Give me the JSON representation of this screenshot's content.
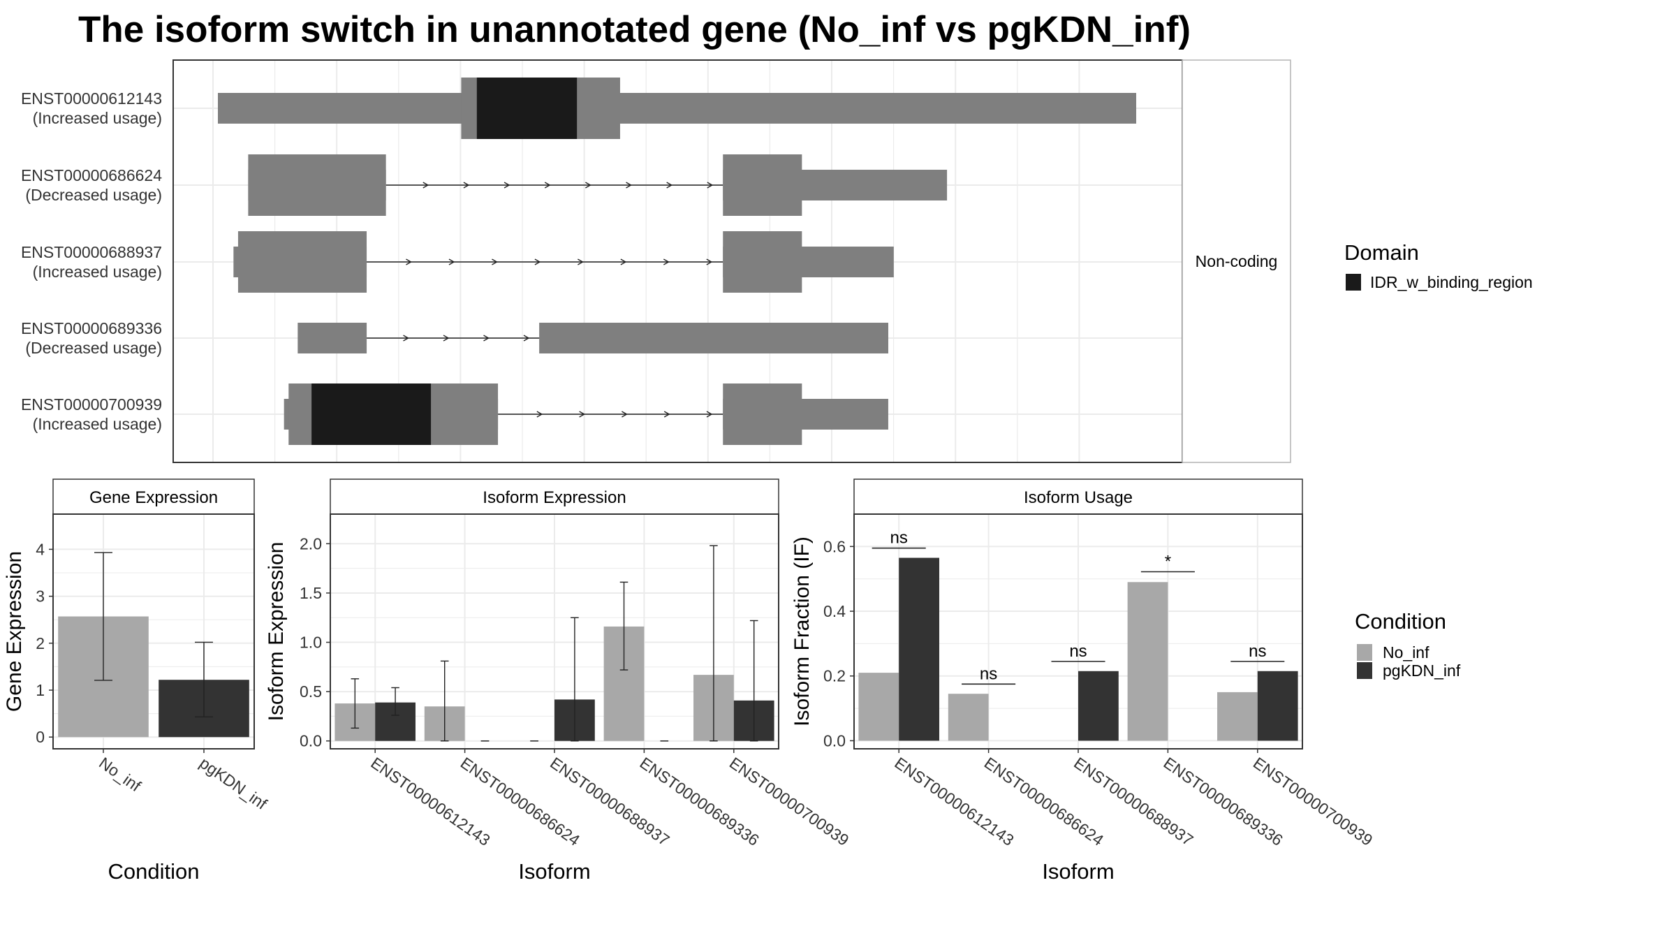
{
  "title": "The isoform switch in unannotated gene (No_inf vs pgKDN_inf)",
  "colors": {
    "no_inf": "#a8a8a8",
    "pgkdn_inf": "#333333",
    "transcript": "#7f7f7f",
    "domain": "#1a1a1a",
    "grid": "#ebebeb"
  },
  "chart_data": [
    {
      "panel": "transcript_structure",
      "type": "gene-structure",
      "strip_label": "Non-coding",
      "xlim": [
        0,
        100
      ],
      "transcripts": [
        {
          "id": "ENST00000612143",
          "label": "(Increased usage)",
          "exons": [
            [
              0,
              100
            ]
          ],
          "thick_exons": [
            [
              26.5,
              43.8
            ]
          ],
          "domains": [
            [
              28.2,
              39.1
            ]
          ]
        },
        {
          "id": "ENST00000686624",
          "label": "(Decreased usage)",
          "exons": [
            [
              3.3,
              18.3
            ],
            [
              55.0,
              79.4
            ]
          ],
          "thick_exons": [
            [
              3.3,
              18.3
            ],
            [
              55.0,
              63.6
            ]
          ],
          "domains": []
        },
        {
          "id": "ENST00000688937",
          "label": "(Increased usage)",
          "exons": [
            [
              1.7,
              16.2
            ],
            [
              55.0,
              73.6
            ]
          ],
          "thick_exons": [
            [
              2.2,
              16.2
            ],
            [
              55.0,
              63.6
            ]
          ],
          "domains": []
        },
        {
          "id": "ENST00000689336",
          "label": "(Decreased usage)",
          "exons": [
            [
              8.7,
              16.2
            ],
            [
              35.0,
              73.0
            ]
          ],
          "thick_exons": [],
          "domains": []
        },
        {
          "id": "ENST00000700939",
          "label": "(Increased usage)",
          "exons": [
            [
              7.2,
              30.5
            ],
            [
              55.0,
              73.0
            ]
          ],
          "thick_exons": [
            [
              7.7,
              30.5
            ],
            [
              55.0,
              63.6
            ]
          ],
          "domains": [
            [
              10.2,
              23.2
            ]
          ]
        }
      ],
      "legend": {
        "title": "Domain",
        "entries": [
          "IDR_w_binding_region"
        ]
      }
    },
    {
      "panel": "gene_expression",
      "type": "bar",
      "strip_label": "Gene Expression",
      "xlabel": "Condition",
      "ylabel": "Gene Expression",
      "ylim": [
        -0.25,
        4.75
      ],
      "yticks": [
        0,
        1,
        2,
        3,
        4
      ],
      "categories": [
        "No_inf",
        "pgKDN_inf"
      ],
      "values": [
        2.57,
        1.22
      ],
      "error_low": [
        1.21,
        0.43
      ],
      "error_high": [
        3.93,
        2.02
      ]
    },
    {
      "panel": "isoform_expression",
      "type": "bar",
      "strip_label": "Isoform Expression",
      "xlabel": "Isoform",
      "ylabel": "Isoform Expression",
      "ylim": [
        -0.08,
        2.3
      ],
      "yticks": [
        0.0,
        0.5,
        1.0,
        1.5,
        2.0
      ],
      "categories": [
        "ENST00000612143",
        "ENST00000686624",
        "ENST00000688937",
        "ENST00000689336",
        "ENST00000700939"
      ],
      "series": [
        {
          "name": "No_inf",
          "values": [
            0.38,
            0.35,
            0.0,
            1.16,
            0.67
          ],
          "error_low": [
            0.13,
            0.0,
            0.0,
            0.72,
            0.0
          ],
          "error_high": [
            0.63,
            0.81,
            0.0,
            1.61,
            1.98
          ]
        },
        {
          "name": "pgKDN_inf",
          "values": [
            0.39,
            0.0,
            0.42,
            0.0,
            0.41
          ],
          "error_low": [
            0.26,
            0.0,
            0.0,
            0.0,
            0.0
          ],
          "error_high": [
            0.54,
            0.0,
            1.25,
            0.0,
            1.22
          ]
        }
      ]
    },
    {
      "panel": "isoform_usage",
      "type": "bar",
      "strip_label": "Isoform Usage",
      "xlabel": "Isoform",
      "ylabel": "Isoform Fraction (IF)",
      "ylim": [
        -0.025,
        0.7
      ],
      "yticks": [
        0.0,
        0.2,
        0.4,
        0.6
      ],
      "categories": [
        "ENST00000612143",
        "ENST00000686624",
        "ENST00000688937",
        "ENST00000689336",
        "ENST00000700939"
      ],
      "series": [
        {
          "name": "No_inf",
          "values": [
            0.21,
            0.145,
            0.0,
            0.49,
            0.15
          ]
        },
        {
          "name": "pgKDN_inf",
          "values": [
            0.565,
            0.0,
            0.215,
            0.0,
            0.215
          ]
        }
      ],
      "significance": [
        {
          "label": "ns",
          "y": 0.595
        },
        {
          "label": "ns",
          "y": 0.175
        },
        {
          "label": "ns",
          "y": 0.245
        },
        {
          "label": "*",
          "y": 0.522
        },
        {
          "label": "ns",
          "y": 0.245
        }
      ],
      "legend": {
        "title": "Condition",
        "entries": [
          "No_inf",
          "pgKDN_inf"
        ]
      }
    }
  ]
}
